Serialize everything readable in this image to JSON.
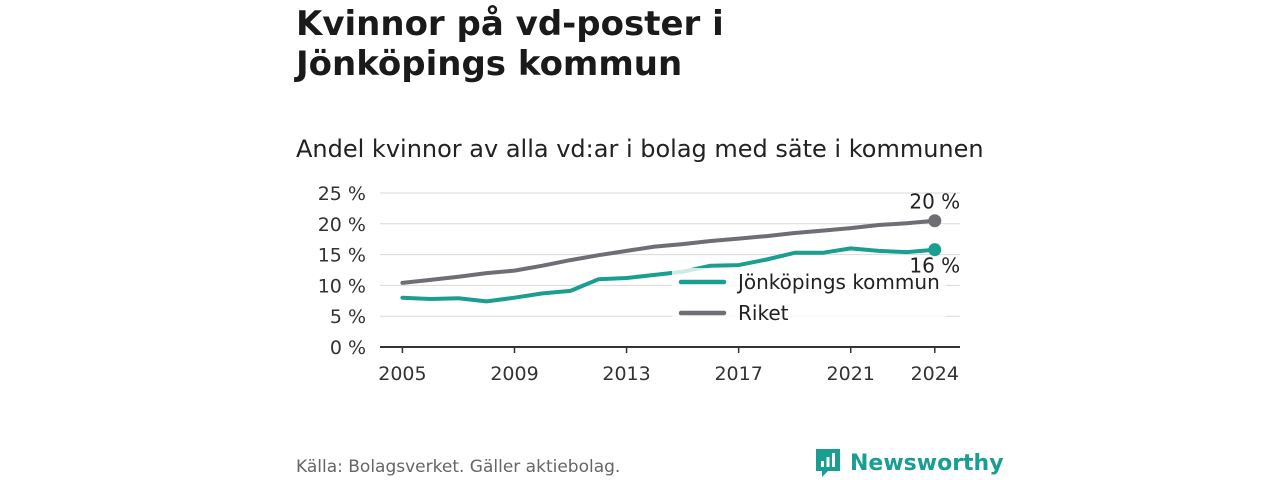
{
  "title": "Kvinnor på vd-poster i Jönköpings kommun",
  "subtitle": "Andel kvinnor av alla vd:ar i bolag med säte i kommunen",
  "source": "Källa: Bolagsverket. Gäller aktiebolag.",
  "brand": {
    "name": "Newsworthy",
    "icon": "newsworthy-logo-icon",
    "color": "#1b9e92"
  },
  "chart_data": {
    "type": "line",
    "title": "Kvinnor på vd-poster i Jönköpings kommun",
    "subtitle": "Andel kvinnor av alla vd:ar i bolag med säte i kommunen",
    "x": [
      2005,
      2006,
      2007,
      2008,
      2009,
      2010,
      2011,
      2012,
      2013,
      2014,
      2015,
      2016,
      2017,
      2018,
      2019,
      2020,
      2021,
      2022,
      2023,
      2024
    ],
    "x_ticks": [
      2005,
      2009,
      2013,
      2017,
      2021,
      2024
    ],
    "x_tick_labels": [
      "2005",
      "2009",
      "2013",
      "2017",
      "2021",
      "2024"
    ],
    "ylim": [
      0,
      25
    ],
    "y_ticks": [
      0,
      5,
      10,
      15,
      20,
      25
    ],
    "y_tick_labels": [
      "0 %",
      "5 %",
      "10 %",
      "15 %",
      "20 %",
      "25 %"
    ],
    "grid": true,
    "legend_position": "bottom-right",
    "series": [
      {
        "name": "Jönköpings kommun",
        "color": "#1b9e92",
        "values": [
          8.0,
          7.8,
          7.9,
          7.4,
          8.0,
          8.7,
          9.1,
          11.0,
          11.2,
          11.7,
          12.2,
          13.2,
          13.3,
          14.2,
          15.3,
          15.3,
          16.0,
          15.6,
          15.4,
          15.8
        ],
        "end_label": "16 %"
      },
      {
        "name": "Riket",
        "color": "#6e6e75",
        "values": [
          10.4,
          10.9,
          11.4,
          12.0,
          12.4,
          13.2,
          14.1,
          14.9,
          15.6,
          16.3,
          16.7,
          17.2,
          17.6,
          18.0,
          18.5,
          18.9,
          19.3,
          19.8,
          20.1,
          20.5
        ],
        "end_label": "20 %"
      }
    ]
  }
}
